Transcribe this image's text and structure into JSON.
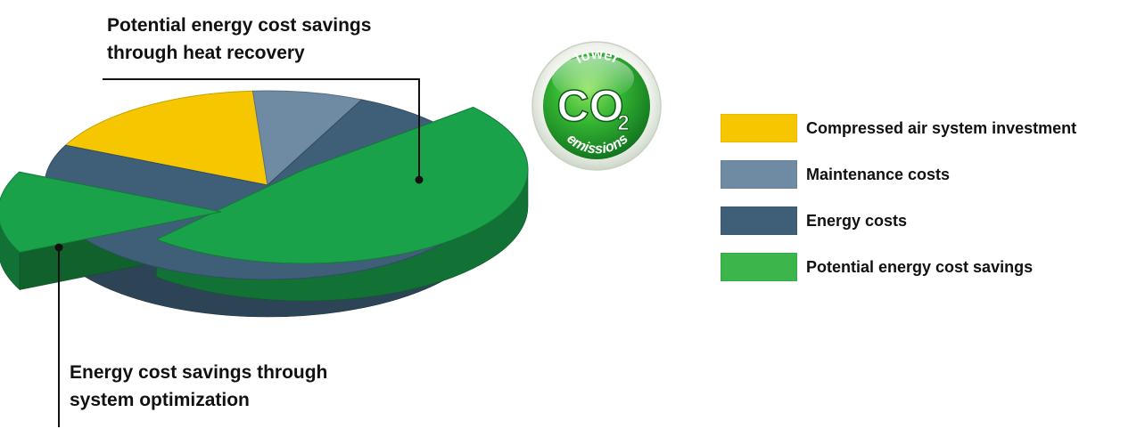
{
  "chart_data": {
    "type": "pie",
    "title": "",
    "slices": [
      {
        "name": "Compressed air system investment",
        "value": 17,
        "color": "#f6c700"
      },
      {
        "name": "Maintenance costs",
        "value": 8,
        "color": "#6f8ba3"
      },
      {
        "name": "Energy costs",
        "value": 75,
        "color": "#3f5f78"
      }
    ],
    "exploded": [
      {
        "name": "Potential energy cost savings",
        "part_of": "Energy costs",
        "value": 48,
        "color": "#1aa24a"
      },
      {
        "name": "Potential energy cost savings",
        "part_of": "Energy costs",
        "value": 14,
        "color": "#1aa24a"
      }
    ],
    "legend_position": "right",
    "legend": [
      {
        "label": "Compressed air system investment",
        "color": "#f6c700"
      },
      {
        "label": "Maintenance costs",
        "color": "#6f8ba3"
      },
      {
        "label": "Energy costs",
        "color": "#3f5f78"
      },
      {
        "label": "Potential energy cost savings",
        "color": "#3cb54a"
      }
    ],
    "annotations": {
      "heat_recovery": [
        "Potential energy cost savings",
        "through heat recovery"
      ],
      "system_optimization": [
        "Energy cost savings through",
        "system optimization"
      ]
    }
  },
  "badge": {
    "top_text": "lower",
    "main_text": "CO",
    "subscript": "2",
    "bottom_text": "emissions"
  }
}
